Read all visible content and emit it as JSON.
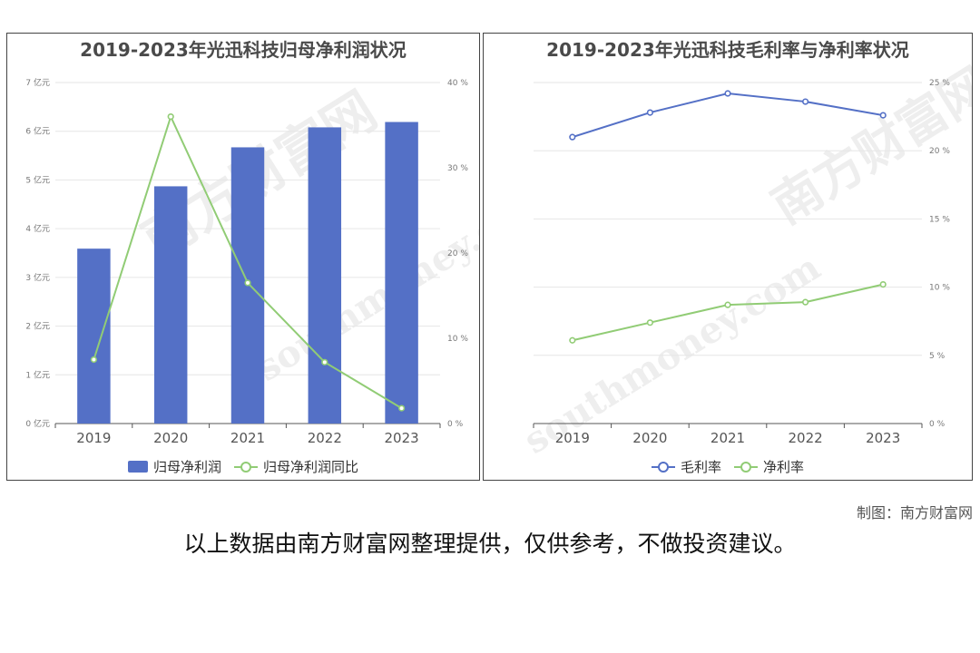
{
  "watermark": {
    "cn": "南方财富网",
    "en": "southmoney.com"
  },
  "credit": "制图：南方财富网",
  "disclaimer": "以上数据由南方财富网整理提供，仅供参考，不做投资建议。",
  "chart_data": [
    {
      "type": "bar",
      "title": "2019-2023年光迅科技归母净利润状况",
      "categories": [
        "2019",
        "2020",
        "2021",
        "2022",
        "2023"
      ],
      "y_left": {
        "ticks": [
          "0 亿元",
          "1 亿元",
          "2 亿元",
          "3 亿元",
          "4 亿元",
          "5 亿元",
          "6 亿元",
          "7 亿元"
        ],
        "ylim": [
          0,
          7
        ]
      },
      "y_right": {
        "ticks": [
          "0 %",
          "10 %",
          "20 %",
          "30 %",
          "40 %"
        ],
        "ylim": [
          0,
          40
        ]
      },
      "series": [
        {
          "name": "归母净利润",
          "kind": "bar",
          "axis": "left",
          "color": "#5470c6",
          "values": [
            3.59,
            4.87,
            5.67,
            6.08,
            6.19
          ]
        },
        {
          "name": "归母净利润同比",
          "kind": "line",
          "axis": "right",
          "color": "#91cc75",
          "values": [
            7.5,
            36.0,
            16.5,
            7.2,
            1.8
          ]
        }
      ],
      "legend": "bottom-center",
      "grid": true
    },
    {
      "type": "line",
      "title": "2019-2023年光迅科技毛利率与净利率状况",
      "categories": [
        "2019",
        "2020",
        "2021",
        "2022",
        "2023"
      ],
      "y_right": {
        "ticks": [
          "0 %",
          "5 %",
          "10 %",
          "15 %",
          "20 %",
          "25 %"
        ],
        "ylim": [
          0,
          25
        ]
      },
      "series": [
        {
          "name": "毛利率",
          "kind": "line",
          "axis": "right",
          "color": "#5470c6",
          "values": [
            21.0,
            22.8,
            24.2,
            23.6,
            22.6
          ]
        },
        {
          "name": "净利率",
          "kind": "line",
          "axis": "right",
          "color": "#91cc75",
          "values": [
            6.1,
            7.4,
            8.7,
            8.9,
            10.2
          ]
        }
      ],
      "legend": "bottom-center",
      "grid": true
    }
  ]
}
